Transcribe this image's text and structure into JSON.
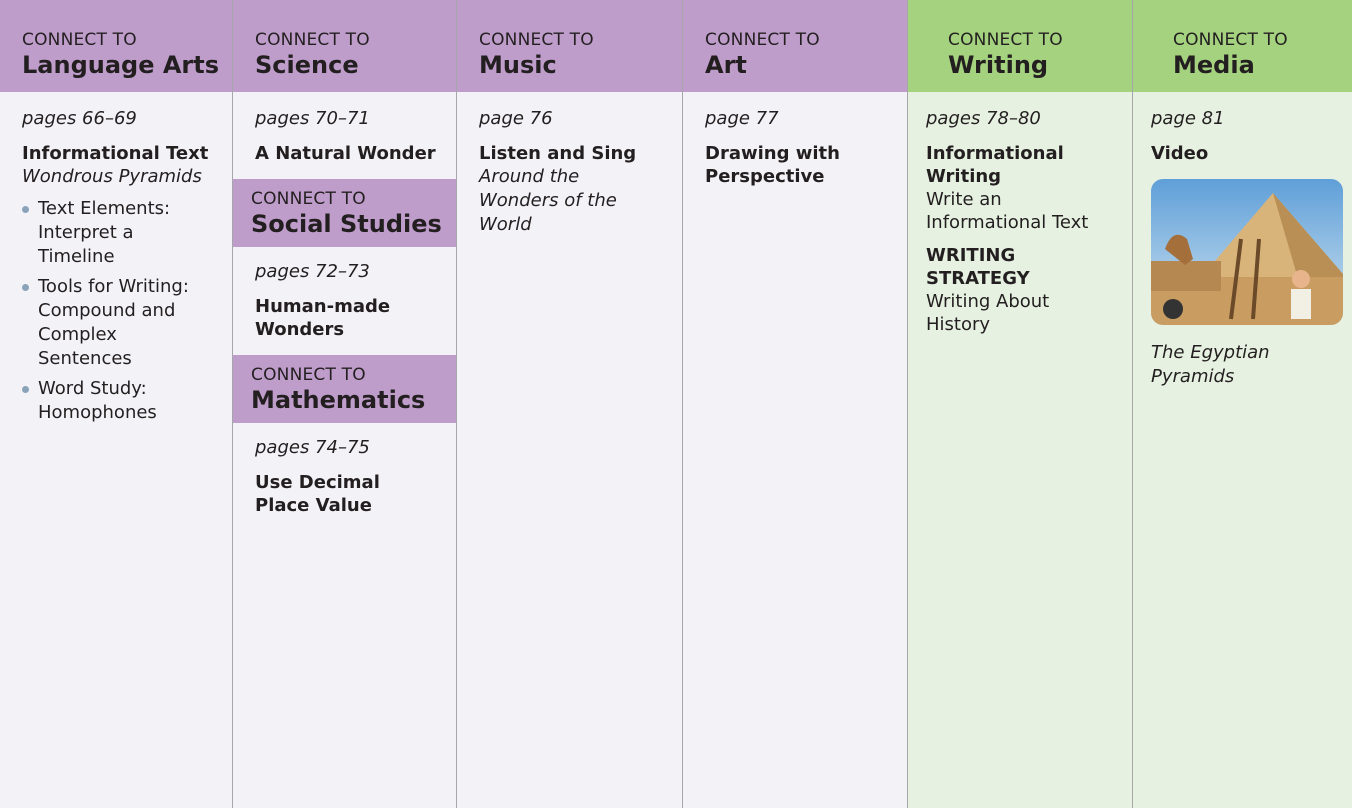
{
  "columns": [
    {
      "header": {
        "connect": "CONNECT TO",
        "subject": "Language Arts"
      },
      "sections": [
        {
          "pages": "pages 66–69",
          "title": "Informational Text",
          "subtitle": "Wondrous Pyramids",
          "bullets": [
            "Text Elements: Interpret a Timeline",
            "Tools for Writing: Compound and Complex Sentences",
            "Word Study: Homophones"
          ]
        }
      ]
    },
    {
      "header": {
        "connect": "CONNECT TO",
        "subject": "Science"
      },
      "sections": [
        {
          "pages": "pages 70–71",
          "title": "A Natural Wonder"
        },
        {
          "header": {
            "connect": "CONNECT TO",
            "subject": "Social Studies"
          },
          "pages": "pages 72–73",
          "title": "Human-made Wonders"
        },
        {
          "header": {
            "connect": "CONNECT TO",
            "subject": "Mathematics"
          },
          "pages": "pages 74–75",
          "title": "Use Decimal Place Value"
        }
      ]
    },
    {
      "header": {
        "connect": "CONNECT TO",
        "subject": "Music"
      },
      "sections": [
        {
          "pages": "page 76",
          "title": "Listen and Sing",
          "subtitle": "Around the Wonders of the World"
        }
      ]
    },
    {
      "header": {
        "connect": "CONNECT TO",
        "subject": "Art"
      },
      "sections": [
        {
          "pages": "page 77",
          "title": "Drawing with Perspective"
        }
      ]
    },
    {
      "header": {
        "connect": "CONNECT TO",
        "subject": "Writing"
      },
      "sections": [
        {
          "pages": "pages 78–80",
          "title": "Informational Writing",
          "text": "Write an Informational Text",
          "strategy": "WRITING STRATEGY",
          "strategy_text": "Writing About History"
        }
      ]
    },
    {
      "header": {
        "connect": "CONNECT TO",
        "subject": "Media"
      },
      "sections": [
        {
          "pages": "page 81",
          "title": "Video",
          "caption": "The Egyptian Pyramids"
        }
      ]
    }
  ]
}
